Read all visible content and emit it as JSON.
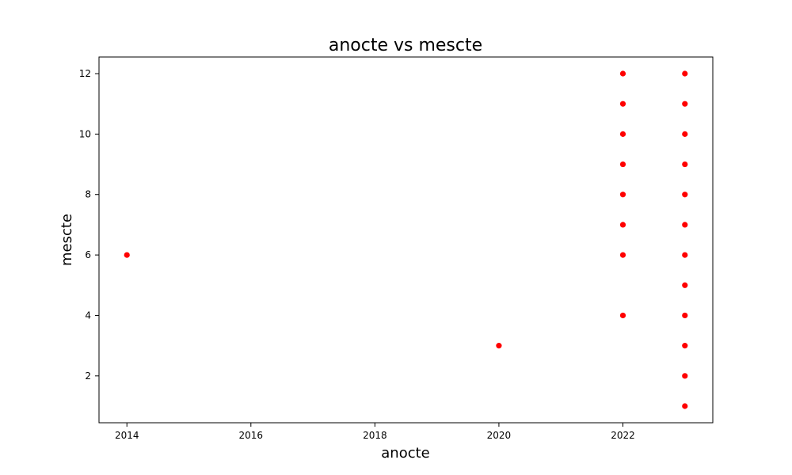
{
  "chart_data": {
    "type": "scatter",
    "title": "anocte vs mescte",
    "xlabel": "anocte",
    "ylabel": "mescte",
    "xlim": [
      2013.55,
      2023.45
    ],
    "ylim": [
      0.45,
      12.55
    ],
    "xticks": [
      2014,
      2016,
      2018,
      2020,
      2022
    ],
    "yticks": [
      2,
      4,
      6,
      8,
      10,
      12
    ],
    "grid": false,
    "marker_color": "#ff0000",
    "series": [
      {
        "points": [
          {
            "x": 2014,
            "y": 6
          },
          {
            "x": 2020,
            "y": 3
          },
          {
            "x": 2022,
            "y": 4
          },
          {
            "x": 2022,
            "y": 6
          },
          {
            "x": 2022,
            "y": 7
          },
          {
            "x": 2022,
            "y": 8
          },
          {
            "x": 2022,
            "y": 9
          },
          {
            "x": 2022,
            "y": 10
          },
          {
            "x": 2022,
            "y": 11
          },
          {
            "x": 2022,
            "y": 12
          },
          {
            "x": 2023,
            "y": 1
          },
          {
            "x": 2023,
            "y": 2
          },
          {
            "x": 2023,
            "y": 3
          },
          {
            "x": 2023,
            "y": 4
          },
          {
            "x": 2023,
            "y": 5
          },
          {
            "x": 2023,
            "y": 6
          },
          {
            "x": 2023,
            "y": 7
          },
          {
            "x": 2023,
            "y": 8
          },
          {
            "x": 2023,
            "y": 9
          },
          {
            "x": 2023,
            "y": 10
          },
          {
            "x": 2023,
            "y": 11
          },
          {
            "x": 2023,
            "y": 12
          }
        ]
      }
    ]
  }
}
